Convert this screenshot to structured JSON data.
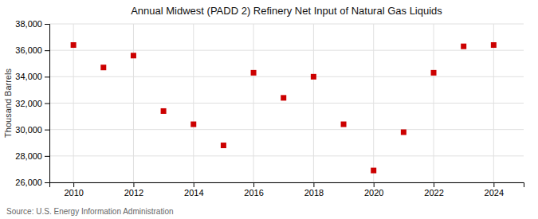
{
  "chart_data": {
    "type": "scatter",
    "title": "Annual Midwest (PADD 2) Refinery Net Input of Natural Gas Liquids",
    "ylabel": "Thousand Barrels",
    "source": "Source: U.S. Energy Information Administration",
    "x": [
      2010,
      2011,
      2012,
      2013,
      2014,
      2015,
      2016,
      2017,
      2018,
      2019,
      2020,
      2021,
      2022,
      2023,
      2024
    ],
    "values": [
      36400,
      34700,
      35600,
      31400,
      30400,
      28800,
      34300,
      32400,
      34000,
      30400,
      26900,
      29800,
      34300,
      36300,
      36400
    ],
    "color": "#cc0000",
    "marker": "square",
    "xlim": [
      2009.2,
      2025.0
    ],
    "xticks": [
      2010,
      2012,
      2014,
      2016,
      2018,
      2020,
      2022,
      2024
    ],
    "ylim": [
      26000,
      38000
    ],
    "yticks": [
      {
        "value": 26000,
        "label": "26,000"
      },
      {
        "value": 28000,
        "label": "28,000"
      },
      {
        "value": 30000,
        "label": "30,000"
      },
      {
        "value": 32000,
        "label": "32,000"
      },
      {
        "value": 34000,
        "label": "34,000"
      },
      {
        "value": 36000,
        "label": "36,000"
      },
      {
        "value": 38000,
        "label": "38,000"
      }
    ],
    "grid": true
  }
}
